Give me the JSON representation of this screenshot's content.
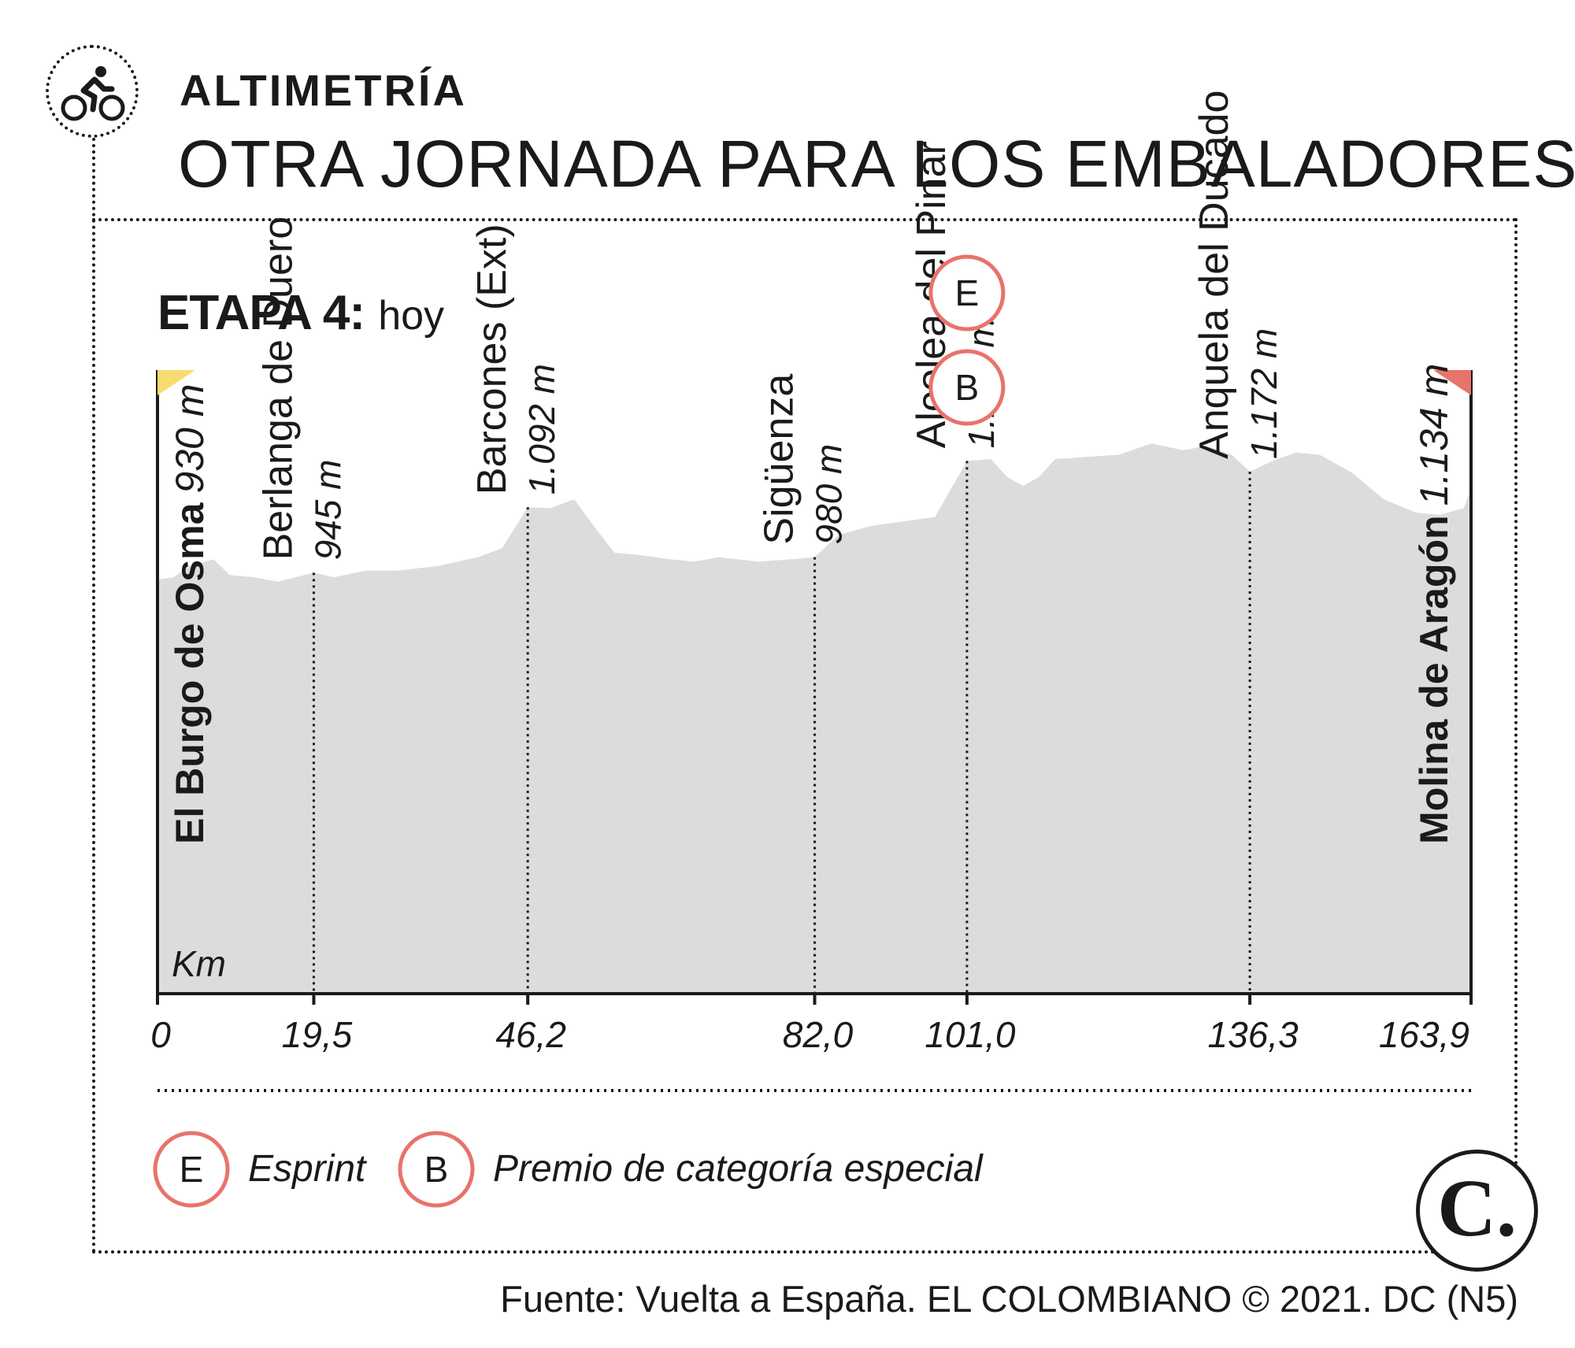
{
  "header": {
    "kicker": "ALTIMETRÍA",
    "headline": "OTRA JORNADA PARA LOS EMBALADORES",
    "icon": "cyclist-icon"
  },
  "stage": {
    "label": "ETAPA 4:",
    "day": "hoy"
  },
  "chart_data": {
    "type": "area",
    "x_unit_label": "Km",
    "xlim": [
      0,
      163.9
    ],
    "ylim": [
      0,
      1400
    ],
    "start_color": "#f7dc6f",
    "finish_color": "#e8736b",
    "profile_color": "#dcdcdd",
    "badge_color": "#e8736b",
    "profile": [
      [
        0,
        930
      ],
      [
        2,
        935
      ],
      [
        4,
        960
      ],
      [
        7,
        975
      ],
      [
        9,
        940
      ],
      [
        12,
        935
      ],
      [
        15,
        925
      ],
      [
        19.5,
        945
      ],
      [
        22,
        935
      ],
      [
        26,
        950
      ],
      [
        30,
        950
      ],
      [
        35,
        960
      ],
      [
        40,
        980
      ],
      [
        43,
        1000
      ],
      [
        46.2,
        1092
      ],
      [
        49,
        1090
      ],
      [
        52,
        1110
      ],
      [
        54,
        1060
      ],
      [
        57,
        990
      ],
      [
        60,
        985
      ],
      [
        64,
        975
      ],
      [
        67,
        970
      ],
      [
        70,
        980
      ],
      [
        75,
        970
      ],
      [
        79,
        975
      ],
      [
        82,
        980
      ],
      [
        85,
        1030
      ],
      [
        89,
        1050
      ],
      [
        93,
        1060
      ],
      [
        97,
        1070
      ],
      [
        101,
        1196
      ],
      [
        104,
        1200
      ],
      [
        106,
        1160
      ],
      [
        108,
        1140
      ],
      [
        110,
        1160
      ],
      [
        112,
        1200
      ],
      [
        116,
        1205
      ],
      [
        120,
        1210
      ],
      [
        124,
        1235
      ],
      [
        128,
        1220
      ],
      [
        131,
        1230
      ],
      [
        134,
        1210
      ],
      [
        136.3,
        1172
      ],
      [
        139,
        1195
      ],
      [
        142,
        1215
      ],
      [
        145,
        1210
      ],
      [
        149,
        1170
      ],
      [
        153,
        1110
      ],
      [
        157,
        1080
      ],
      [
        160,
        1075
      ],
      [
        163,
        1090
      ],
      [
        163.9,
        1134
      ]
    ],
    "points": [
      {
        "km": 0,
        "km_label": "0",
        "name": "El Burgo de Osma",
        "elevation": "930 m",
        "role": "start"
      },
      {
        "km": 19.5,
        "km_label": "19,5",
        "name": "Berlanga de Duero",
        "elevation": "945 m",
        "role": "intermediate"
      },
      {
        "km": 46.2,
        "km_label": "46,2",
        "name": "Barcones (Ext)",
        "elevation": "1.092 m",
        "role": "intermediate"
      },
      {
        "km": 82.0,
        "km_label": "82,0",
        "name": "Sigüenza",
        "elevation": "980 m",
        "role": "intermediate"
      },
      {
        "km": 101.0,
        "km_label": "101,0",
        "name": "Alcolea del Pinar",
        "elevation": "1.196 m",
        "role": "intermediate",
        "badges": [
          "E",
          "B"
        ]
      },
      {
        "km": 136.3,
        "km_label": "136,3",
        "name": "Anquela del Ducado",
        "elevation": "1.172 m",
        "role": "intermediate"
      },
      {
        "km": 163.9,
        "km_label": "163,9",
        "name": "Molina de Aragón",
        "elevation": "1.134 m",
        "role": "finish"
      }
    ]
  },
  "legend": [
    {
      "badge": "E",
      "label": "Esprint"
    },
    {
      "badge": "B",
      "label": "Premio de categoría especial"
    }
  ],
  "footer": {
    "source": "Fuente: Vuelta a España. EL COLOMBIANO © 2021. DC (N5)",
    "logo": "C."
  }
}
